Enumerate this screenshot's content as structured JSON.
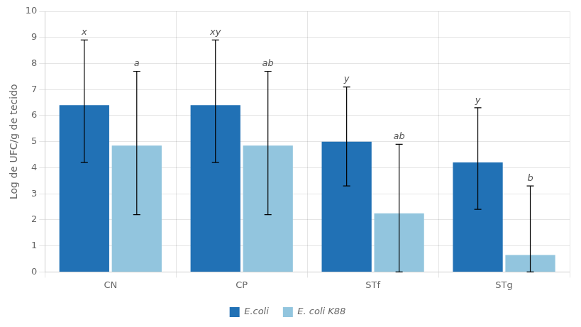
{
  "chart_data": {
    "type": "bar",
    "ylabel": "Log de UFC/g de tecido",
    "categories": [
      "CN",
      "CP",
      "STf",
      "STg"
    ],
    "series": [
      {
        "name": "E.coli",
        "color": "#2171b5",
        "values": [
          6.4,
          6.4,
          5.0,
          4.2
        ],
        "yerr_low": [
          2.2,
          2.2,
          1.7,
          1.8
        ],
        "yerr_high": [
          2.5,
          2.5,
          2.1,
          2.1
        ],
        "annotations": [
          "x",
          "xy",
          "y",
          "y"
        ]
      },
      {
        "name": "E. coli K88",
        "color": "#92c5de",
        "values": [
          4.85,
          4.85,
          2.25,
          0.65
        ],
        "yerr_low": [
          2.65,
          2.65,
          2.25,
          0.65
        ],
        "yerr_high": [
          2.85,
          2.85,
          2.65,
          2.65
        ],
        "annotations": [
          "a",
          "ab",
          "ab",
          "b"
        ]
      }
    ],
    "ylim": [
      0,
      10
    ],
    "yticks": [
      0,
      1,
      2,
      3,
      4,
      5,
      6,
      7,
      8,
      9,
      10
    ],
    "grid": true,
    "legend": "bottom"
  }
}
